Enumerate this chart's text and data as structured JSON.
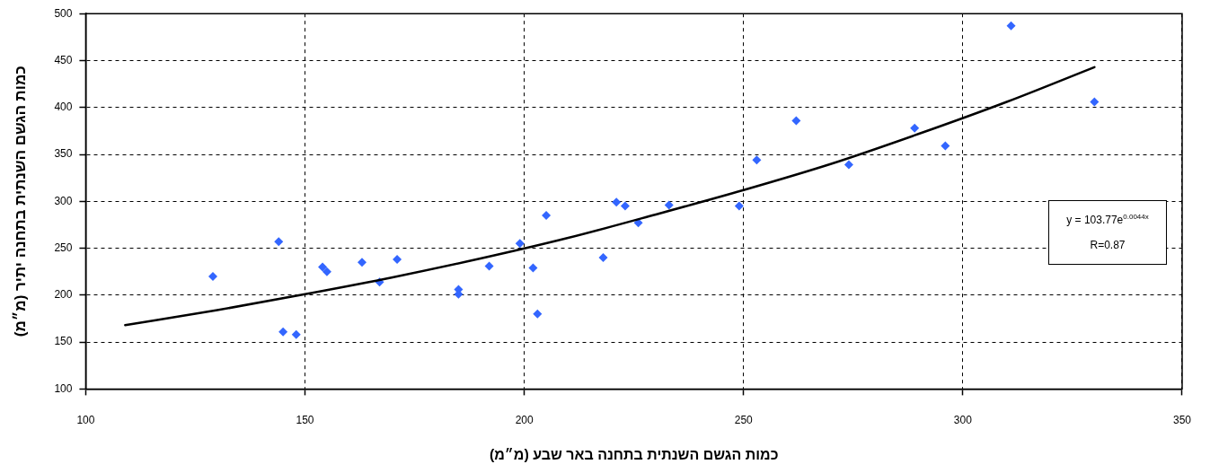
{
  "chart_data": {
    "type": "scatter",
    "xlabel": "כמות הגשם השנתית בתחנה באר שבע (מ״מ)",
    "ylabel": "כמות הגשם השנתית בתחנה יתיר (מ״מ)",
    "xlim": [
      100,
      350
    ],
    "xticks": [
      100,
      150,
      200,
      250,
      300,
      350
    ],
    "ylim": [
      100,
      500
    ],
    "yticks": [
      100,
      150,
      200,
      250,
      300,
      350,
      400,
      450,
      500
    ],
    "grid": true,
    "marker": "diamond",
    "series": [
      {
        "type": "scatter",
        "color": "#3366ff",
        "x": [
          129,
          144,
          145,
          148,
          154,
          155,
          163,
          167,
          171,
          185,
          185,
          192,
          199,
          202,
          203,
          205,
          218,
          221,
          223,
          226,
          233,
          249,
          253,
          262,
          274,
          289,
          296,
          311,
          330
        ],
        "values": [
          220,
          257,
          161,
          158,
          230,
          225,
          235,
          214,
          238,
          206,
          201,
          231,
          255,
          229,
          180,
          285,
          240,
          299,
          295,
          277,
          296,
          295,
          344,
          386,
          339,
          378,
          359,
          487,
          406
        ]
      },
      {
        "type": "line",
        "color": "#000000",
        "marker": "none",
        "x": [
          109,
          130,
          150,
          170,
          190,
          210,
          230,
          250,
          270,
          290,
          310,
          330
        ],
        "values": [
          168,
          184,
          201,
          219,
          239,
          261,
          286,
          312,
          340,
          372,
          406,
          443
        ]
      }
    ],
    "annotations": [
      "y = 103.77e$^{0.0044x}$",
      "R=0.87"
    ]
  }
}
